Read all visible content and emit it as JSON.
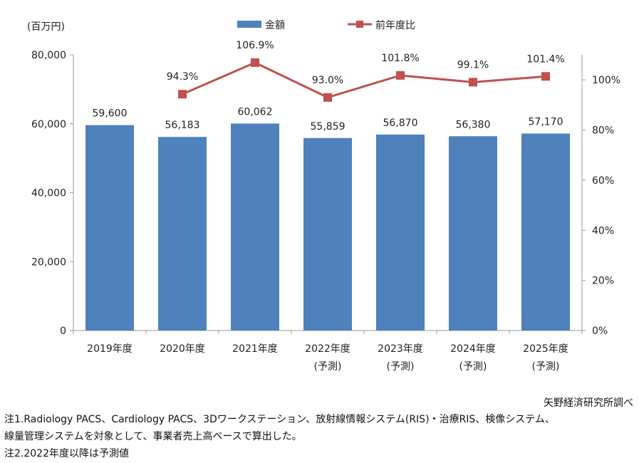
{
  "chart_data": {
    "type": "bar+line",
    "unit_label": "(百万円)",
    "categories": [
      "2019年度",
      "2020年度",
      "2021年度",
      "2022年度",
      "2023年度",
      "2024年度",
      "2025年度"
    ],
    "category_sublabels": [
      "",
      "",
      "",
      "(予測)",
      "(予測)",
      "(予測)",
      "(予測)"
    ],
    "series": [
      {
        "name": "金額",
        "type": "bar",
        "axis": "left",
        "color": "#4F81BD",
        "values": [
          59600,
          56183,
          60062,
          55859,
          56870,
          56380,
          57170
        ],
        "labels": [
          "59,600",
          "56,183",
          "60,062",
          "55,859",
          "56,870",
          "56,380",
          "57,170"
        ]
      },
      {
        "name": "前年度比",
        "type": "line",
        "axis": "right",
        "color": "#C0504D",
        "values": [
          null,
          94.3,
          106.9,
          93.0,
          101.8,
          99.1,
          101.4
        ],
        "labels": [
          "",
          "94.3%",
          "106.9%",
          "93.0%",
          "101.8%",
          "99.1%",
          "101.4%"
        ]
      }
    ],
    "left_axis": {
      "ylim": [
        0,
        80000
      ],
      "ticks": [
        0,
        20000,
        40000,
        60000,
        80000
      ],
      "tick_labels": [
        "0",
        "20,000",
        "40,000",
        "60,000",
        "80,000"
      ]
    },
    "right_axis": {
      "ylim": [
        0,
        110
      ],
      "ticks": [
        0,
        20,
        40,
        60,
        80,
        100
      ],
      "tick_labels": [
        "0%",
        "20%",
        "40%",
        "60%",
        "80%",
        "100%"
      ]
    },
    "legend_placement": "top-center",
    "grid": false
  },
  "source": "矢野経済研究所調べ",
  "notes": [
    "注1.Radiology PACS、Cardiology PACS、3Dワークステーション、放射線情報システム(RIS)・治療RIS、検像システム、",
    "線量管理システムを対象として、事業者売上高ベースで算出した。",
    "注2.2022年度以降は予測値"
  ]
}
